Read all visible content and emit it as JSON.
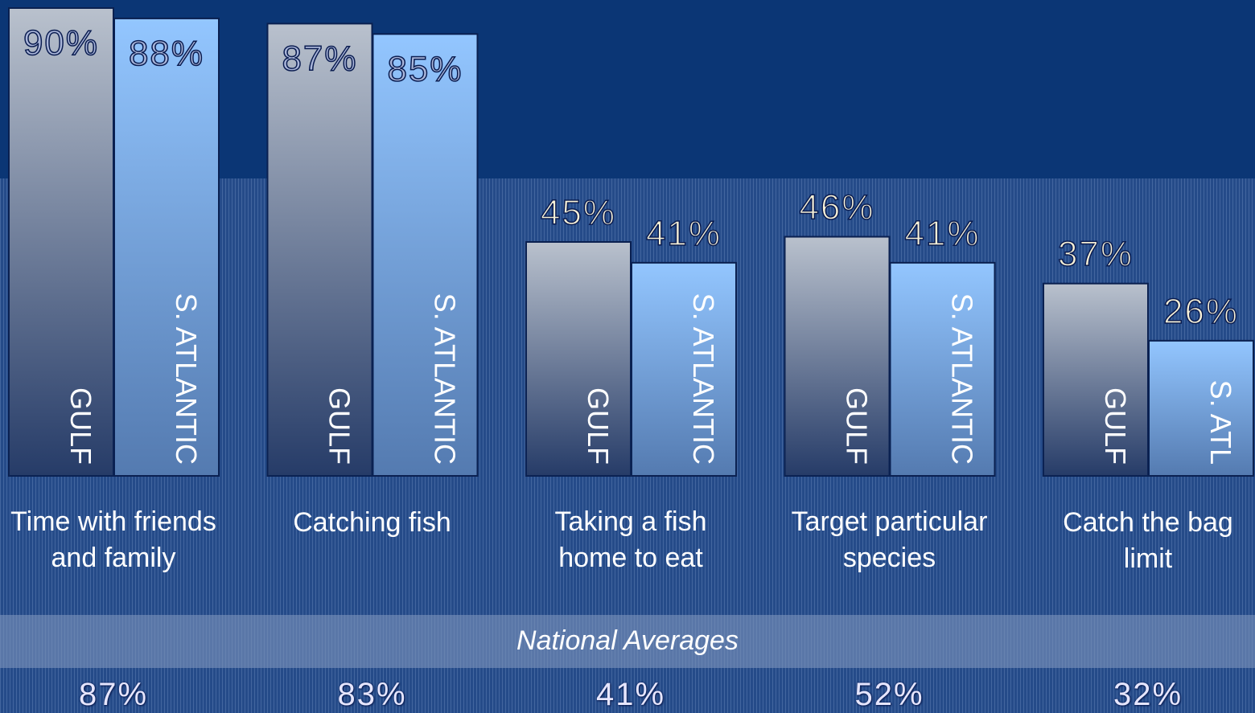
{
  "chart_data": {
    "type": "bar",
    "categories": [
      "Time with friends and family",
      "Catching fish",
      "Taking a fish home to eat",
      "Target particular species",
      "Catch the bag limit"
    ],
    "series": [
      {
        "color": "#b9c1cd",
        "bar_labels": [
          "GULF",
          "GULF",
          "GULF",
          "GULF",
          "GULF"
        ],
        "values": [
          90,
          87,
          45,
          46,
          37
        ],
        "value_labels": [
          "90%",
          "87%",
          "45%",
          "46%",
          "37%"
        ]
      },
      {
        "color": "#93c6ff",
        "bar_labels": [
          "S. ATLANTIC",
          "S. ATLANTIC",
          "S. ATLANTIC",
          "S. ATLANTIC",
          "S. ATL"
        ],
        "values": [
          88,
          85,
          41,
          41,
          26
        ],
        "value_labels": [
          "88%",
          "85%",
          "41%",
          "41%",
          "26%"
        ]
      }
    ],
    "ylim": [
      0,
      90
    ],
    "national_averages": {
      "title": "National Averages",
      "values": [
        87,
        83,
        41,
        52,
        32
      ],
      "value_labels": [
        "87%",
        "83%",
        "41%",
        "52%",
        "32%"
      ]
    }
  }
}
